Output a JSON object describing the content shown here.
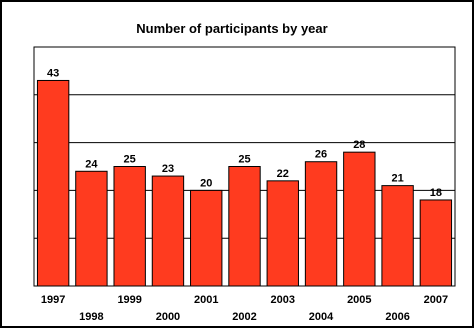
{
  "chart_data": {
    "type": "bar",
    "title": "Number of participants by year",
    "categories": [
      "1997",
      "1998",
      "1999",
      "2000",
      "2001",
      "2002",
      "2003",
      "2004",
      "2005",
      "2006",
      "2007"
    ],
    "values": [
      43,
      24,
      25,
      23,
      20,
      25,
      22,
      26,
      28,
      21,
      18
    ],
    "ylim": [
      0,
      50
    ],
    "grid": true,
    "xlabel": "",
    "ylabel": "",
    "colors": {
      "bar": "#ff3b1f",
      "bar_stroke": "#000000",
      "frame": "#000000",
      "gridline": "#000000",
      "background": "#ffffff"
    }
  }
}
